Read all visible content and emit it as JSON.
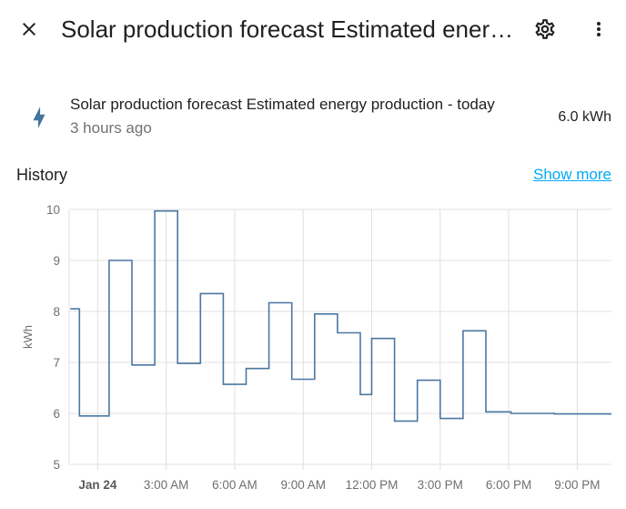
{
  "dialog": {
    "title": "Solar production forecast Estimated energy production - today"
  },
  "icons": {
    "close": "close-icon",
    "settings": "gear-icon",
    "more": "more-vertical-icon",
    "entity": "lightning-bolt-icon"
  },
  "entity": {
    "name": "Solar production forecast Estimated energy production - today",
    "last_changed": "3 hours ago",
    "state": "6.0 kWh"
  },
  "history": {
    "title": "History",
    "show_more": "Show more"
  },
  "colors": {
    "line": "#4b77a3",
    "accent": "#03a9f4",
    "icon": "#44739e"
  },
  "chart_data": {
    "type": "line",
    "step": true,
    "ylabel": "kWh",
    "ylim": [
      5,
      10
    ],
    "yticks": [
      5,
      6,
      7,
      8,
      9,
      10
    ],
    "xlim_hours": [
      -1.25,
      22.5
    ],
    "xticks": [
      {
        "hour": 0,
        "label": "Jan 24",
        "major": true
      },
      {
        "hour": 3,
        "label": "3:00 AM"
      },
      {
        "hour": 6,
        "label": "6:00 AM"
      },
      {
        "hour": 9,
        "label": "9:00 AM"
      },
      {
        "hour": 12,
        "label": "12:00 PM"
      },
      {
        "hour": 15,
        "label": "3:00 PM"
      },
      {
        "hour": 18,
        "label": "6:00 PM"
      },
      {
        "hour": 21,
        "label": "9:00 PM"
      }
    ],
    "grid": true,
    "series": [
      {
        "points": [
          {
            "hour": -1.2,
            "value": 8.05
          },
          {
            "hour": -0.8,
            "value": 5.95
          },
          {
            "hour": 0.5,
            "value": 9.0
          },
          {
            "hour": 1.5,
            "value": 6.95
          },
          {
            "hour": 2.5,
            "value": 9.97
          },
          {
            "hour": 3.5,
            "value": 6.98
          },
          {
            "hour": 4.5,
            "value": 8.35
          },
          {
            "hour": 5.5,
            "value": 6.57
          },
          {
            "hour": 6.5,
            "value": 6.88
          },
          {
            "hour": 7.5,
            "value": 8.17
          },
          {
            "hour": 8.5,
            "value": 6.67
          },
          {
            "hour": 9.5,
            "value": 7.95
          },
          {
            "hour": 10.5,
            "value": 7.58
          },
          {
            "hour": 11.5,
            "value": 6.37
          },
          {
            "hour": 12.0,
            "value": 7.47
          },
          {
            "hour": 13.0,
            "value": 5.85
          },
          {
            "hour": 14.0,
            "value": 6.65
          },
          {
            "hour": 15.0,
            "value": 5.9
          },
          {
            "hour": 16.0,
            "value": 7.62
          },
          {
            "hour": 17.0,
            "value": 6.03
          },
          {
            "hour": 18.1,
            "value": 6.0
          },
          {
            "hour": 20.0,
            "value": 5.99
          },
          {
            "hour": 22.5,
            "value": 5.99
          }
        ]
      }
    ]
  }
}
